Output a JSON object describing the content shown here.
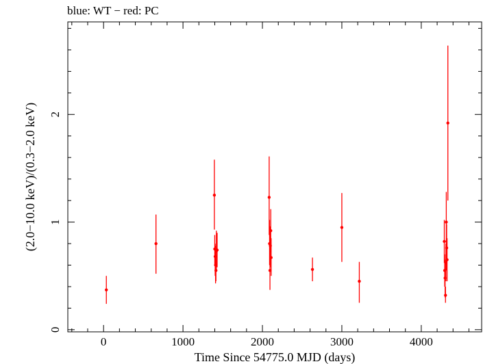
{
  "chart_data": {
    "type": "scatter",
    "title": "blue: WT − red: PC",
    "xlabel": "Time Since 54775.0 MJD (days)",
    "ylabel": "(2.0−10.0 keV)/(0.3−2.0 keV)",
    "xlim": [
      -450,
      4760
    ],
    "ylim": [
      -0.02,
      2.86
    ],
    "xticks": [
      0,
      1000,
      2000,
      3000,
      4000
    ],
    "yticks": [
      0,
      1,
      2
    ],
    "grid": false,
    "series": [
      {
        "color": "#ff0000",
        "points": [
          {
            "x": 35,
            "y": 0.37,
            "lo": 0.24,
            "hi": 0.5
          },
          {
            "x": 660,
            "y": 0.8,
            "lo": 0.52,
            "hi": 1.07
          },
          {
            "x": 1395,
            "y": 1.25,
            "lo": 0.93,
            "hi": 1.58
          },
          {
            "x": 1400,
            "y": 0.75,
            "lo": 0.6,
            "hi": 0.88
          },
          {
            "x": 1405,
            "y": 0.68,
            "lo": 0.5,
            "hi": 0.8
          },
          {
            "x": 1410,
            "y": 0.6,
            "lo": 0.43,
            "hi": 0.78
          },
          {
            "x": 1415,
            "y": 0.55,
            "lo": 0.45,
            "hi": 0.65
          },
          {
            "x": 1420,
            "y": 0.73,
            "lo": 0.55,
            "hi": 0.92
          },
          {
            "x": 1430,
            "y": 0.74,
            "lo": 0.58,
            "hi": 0.9
          },
          {
            "x": 2085,
            "y": 1.23,
            "lo": 0.88,
            "hi": 1.61
          },
          {
            "x": 2090,
            "y": 0.8,
            "lo": 0.6,
            "hi": 1.02
          },
          {
            "x": 2095,
            "y": 0.55,
            "lo": 0.37,
            "hi": 0.72
          },
          {
            "x": 2100,
            "y": 0.78,
            "lo": 0.58,
            "hi": 0.96
          },
          {
            "x": 2105,
            "y": 0.92,
            "lo": 0.72,
            "hi": 1.12
          },
          {
            "x": 2110,
            "y": 0.67,
            "lo": 0.5,
            "hi": 0.85
          },
          {
            "x": 2630,
            "y": 0.56,
            "lo": 0.45,
            "hi": 0.67
          },
          {
            "x": 3000,
            "y": 0.95,
            "lo": 0.63,
            "hi": 1.27
          },
          {
            "x": 3220,
            "y": 0.45,
            "lo": 0.25,
            "hi": 0.63
          },
          {
            "x": 4290,
            "y": 0.82,
            "lo": 0.62,
            "hi": 1.02
          },
          {
            "x": 4295,
            "y": 0.55,
            "lo": 0.4,
            "hi": 0.7
          },
          {
            "x": 4300,
            "y": 0.48,
            "lo": 0.3,
            "hi": 0.65
          },
          {
            "x": 4305,
            "y": 0.32,
            "lo": 0.25,
            "hi": 0.4
          },
          {
            "x": 4310,
            "y": 0.62,
            "lo": 0.45,
            "hi": 0.8
          },
          {
            "x": 4315,
            "y": 1.0,
            "lo": 0.75,
            "hi": 1.28
          },
          {
            "x": 4320,
            "y": 0.76,
            "lo": 0.55,
            "hi": 0.98
          },
          {
            "x": 4325,
            "y": 0.65,
            "lo": 0.45,
            "hi": 0.85
          },
          {
            "x": 4335,
            "y": 1.92,
            "lo": 1.2,
            "hi": 2.64
          }
        ]
      }
    ]
  }
}
